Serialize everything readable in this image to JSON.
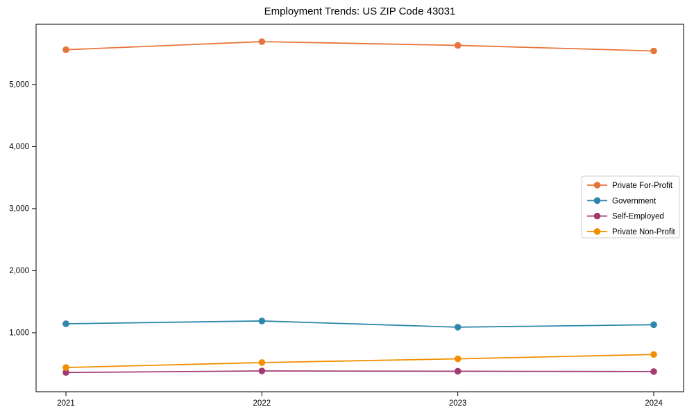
{
  "figure": {
    "background_color": "#ffffff",
    "axis_color": "#000000",
    "tick_label_color": "#000000",
    "legend_border_color": "#cccccc",
    "legend_background_color": "#ffffff"
  },
  "chart_data": {
    "type": "line",
    "title": "Employment Trends: US ZIP Code 43031",
    "xlabel": "",
    "ylabel": "",
    "categories": [
      "2021",
      "2022",
      "2023",
      "2024"
    ],
    "series": [
      {
        "name": "Private For-Profit",
        "color": "#E8743B",
        "values": [
          5560,
          5690,
          5630,
          5540
        ]
      },
      {
        "name": "Government",
        "color": "#2E86AB",
        "values": [
          1145,
          1190,
          1090,
          1130
        ]
      },
      {
        "name": "Self-Employed",
        "color": "#A23B72",
        "values": [
          360,
          385,
          380,
          375
        ]
      },
      {
        "name": "Private Non-Profit",
        "color": "#F18F01",
        "values": [
          440,
          520,
          580,
          650
        ]
      }
    ],
    "ylim": [
      50,
      5970
    ],
    "yticks": [
      1000,
      2000,
      3000,
      4000,
      5000
    ],
    "ytick_labels": [
      "1,000",
      "2,000",
      "3,000",
      "4,000",
      "5,000"
    ],
    "grid": false,
    "legend_position": "center right",
    "marker": "circle"
  }
}
